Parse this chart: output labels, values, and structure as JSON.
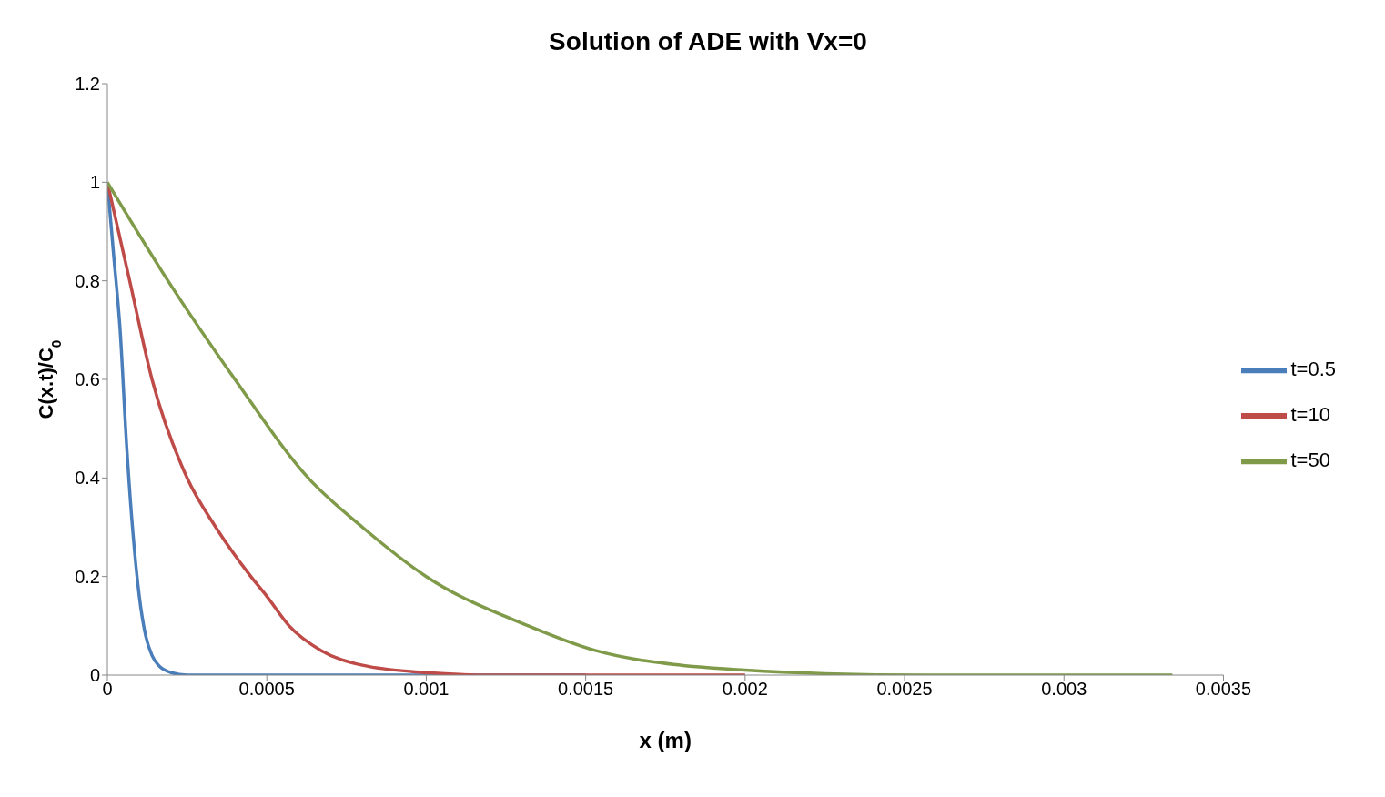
{
  "chart_data": {
    "type": "line",
    "title": "Solution of ADE with Vx=0",
    "xlabel": "x  (m)",
    "ylabel": "C(x.t)/C$_{0}$",
    "xlim": [
      0,
      0.0035
    ],
    "xticks": [
      0,
      0.0005,
      0.001,
      0.0015,
      0.002,
      0.0025,
      0.003,
      0.0035
    ],
    "ylim": [
      0,
      1.2
    ],
    "yticks": [
      0,
      0.2,
      0.4,
      0.6,
      0.8,
      1,
      1.2
    ],
    "grid": false,
    "legend": "right",
    "marker": "none",
    "line_style": "solid",
    "series": [
      {
        "name": "t=0.5",
        "color": "#4a7ebb",
        "x": [
          0,
          2e-05,
          4e-05,
          6e-05,
          8e-05,
          0.0001,
          0.00012,
          0.00014,
          0.00016,
          0.0002,
          0.00025,
          0.0005,
          0.001,
          0.0015
        ],
        "values": [
          1,
          0.85,
          0.7,
          0.47,
          0.29,
          0.16,
          0.08,
          0.04,
          0.02,
          0.005,
          0,
          0,
          0,
          0
        ]
      },
      {
        "name": "t=10",
        "color": "#be4b48",
        "x": [
          0,
          7e-05,
          0.00014,
          0.00025,
          0.00034,
          0.00045,
          0.0005,
          0.00057,
          0.00067,
          0.0008,
          0.001,
          0.0012,
          0.0015,
          0.002
        ],
        "values": [
          1,
          0.8,
          0.6,
          0.4,
          0.3,
          0.2,
          0.16,
          0.1,
          0.05,
          0.02,
          0.005,
          0,
          0,
          0
        ]
      },
      {
        "name": "t=50",
        "color": "#7f9a48",
        "x": [
          0,
          0.00019,
          0.0004,
          0.00063,
          0.0008,
          0.001,
          0.00132,
          0.00153,
          0.0018,
          0.002,
          0.00225,
          0.0026,
          0.003,
          0.00334
        ],
        "values": [
          1,
          0.8,
          0.6,
          0.4,
          0.3,
          0.2,
          0.1,
          0.05,
          0.02,
          0.01,
          0.003,
          0,
          0,
          0
        ]
      }
    ]
  }
}
